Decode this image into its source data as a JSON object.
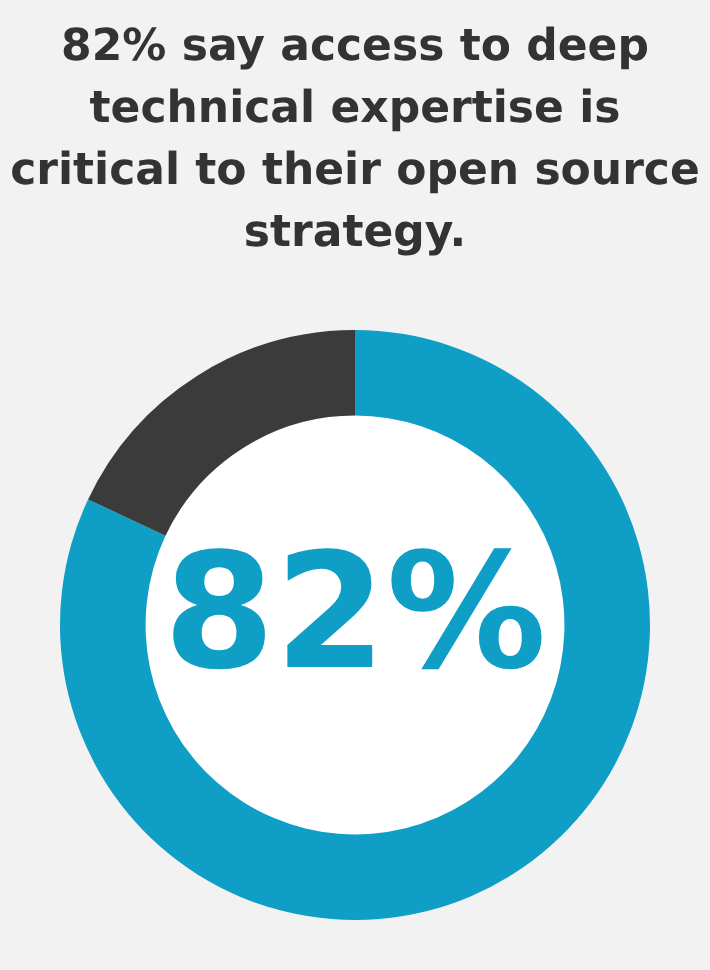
{
  "chart_data": {
    "type": "donut",
    "title": "82% say access to deep technical expertise is critical to their open source strategy.",
    "categories": [
      null,
      null
    ],
    "values": [
      82,
      18
    ],
    "colors": [
      "#0e9ec6",
      "#3b3b3b"
    ],
    "value_labels": [
      "82%",
      null
    ],
    "legend": false
  }
}
